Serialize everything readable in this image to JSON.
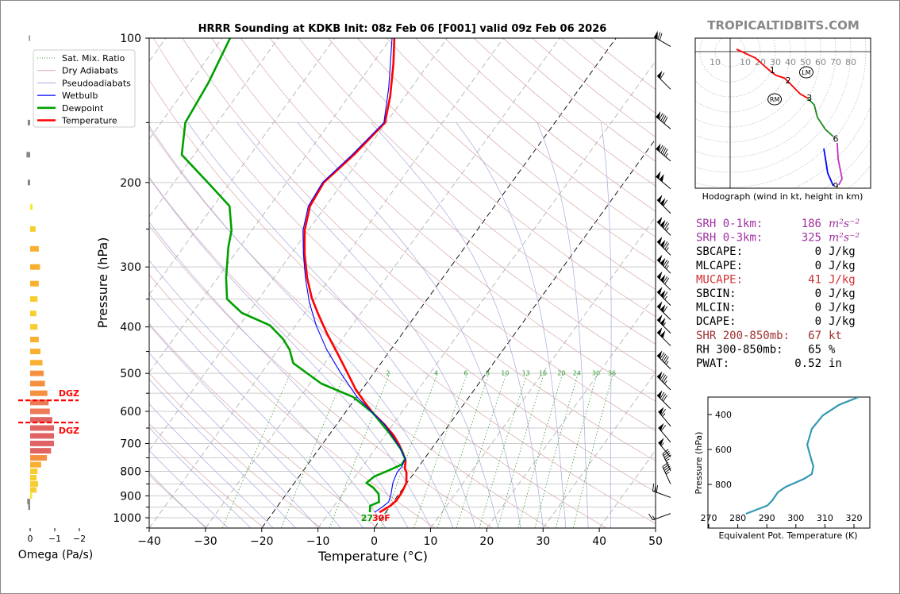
{
  "header": {
    "title": "HRRR Sounding at KDKB Init: 08z Feb 06 [F001] valid 09z Feb 06 2026",
    "watermark": "TROPICALTIDBITS.COM"
  },
  "legend": {
    "items": [
      {
        "label": "Sat. Mix. Ratio",
        "color": "#3a9a3a"
      },
      {
        "label": "Dry Adiabats",
        "color": "#d8a8a8"
      },
      {
        "label": "Pseudoadiabats",
        "color": "#a8a8dd"
      },
      {
        "label": "Wetbulb",
        "color": "#0000ff"
      },
      {
        "label": "Dewpoint",
        "color": "#00a000"
      },
      {
        "label": "Temperature",
        "color": "#ff0000"
      }
    ]
  },
  "surface_labels": {
    "dewpoint": "27",
    "temperature": "30F"
  },
  "chart_data": [
    {
      "type": "line",
      "name": "skew-t",
      "xlabel": "Temperature (°C)",
      "ylabel": "Pressure (hPa)",
      "xlim": [
        -40,
        50
      ],
      "ylim": [
        1050,
        100
      ],
      "xticks": [
        "−40",
        "−30",
        "−20",
        "−10",
        "0",
        "10",
        "20",
        "30",
        "40",
        "50"
      ],
      "xtick_values": [
        -40,
        -30,
        -20,
        -10,
        0,
        10,
        20,
        30,
        40,
        50
      ],
      "yticks": [
        "100",
        "200",
        "300",
        "400",
        "500",
        "600",
        "700",
        "800",
        "900",
        "1000"
      ],
      "ytick_values": [
        100,
        200,
        300,
        400,
        500,
        600,
        700,
        800,
        900,
        1000
      ],
      "mixing_ratio_labels": [
        "2",
        "4",
        "6",
        "8",
        "10",
        "13",
        "16",
        "20",
        "24",
        "30",
        "36"
      ],
      "mixing_ratio_values": [
        0.4,
        1,
        2,
        4,
        6,
        8,
        10,
        13,
        16,
        20,
        24,
        30,
        36
      ],
      "series": [
        {
          "name": "Temperature",
          "color": "#ff0000",
          "p": [
            974,
            944,
            920,
            885,
            846,
            805,
            790,
            760,
            732,
            704,
            673,
            640,
            605,
            571,
            539,
            500,
            454,
            413,
            375,
            348,
            316,
            282,
            252,
            224,
            200,
            175,
            150,
            132,
            113,
            100
          ],
          "t": [
            -1.1,
            0.0,
            0.4,
            0.3,
            -0.1,
            -1.4,
            -2.2,
            -3.1,
            -4.6,
            -6.3,
            -8.5,
            -11.4,
            -15.0,
            -18.2,
            -21.2,
            -24.6,
            -29.0,
            -33.4,
            -37.6,
            -40.7,
            -44.1,
            -47.6,
            -50.6,
            -52.8,
            -53.4,
            -51.6,
            -50.2,
            -52.7,
            -56.3,
            -59.4
          ]
        },
        {
          "name": "Dewpoint",
          "color": "#00a000",
          "p": [
            974,
            944,
            927,
            892,
            865,
            846,
            820,
            796,
            775,
            754,
            718,
            665,
            605,
            560,
            525,
            476,
            446,
            424,
            397,
            374,
            350,
            316,
            272,
            252,
            224,
            200,
            175,
            150,
            124,
            100
          ],
          "t": [
            -2.8,
            -3.6,
            -2.5,
            -3.6,
            -5.4,
            -7.2,
            -6.6,
            -4.8,
            -3.3,
            -3.4,
            -5.5,
            -9.6,
            -15.0,
            -20.6,
            -28.0,
            -35.6,
            -38.0,
            -40.5,
            -44.6,
            -51.2,
            -55.6,
            -58.5,
            -62.1,
            -63.6,
            -67.1,
            -74.0,
            -82.2,
            -85.7,
            -86.7,
            -88.6
          ]
        },
        {
          "name": "Wetbulb",
          "color": "#0000ff",
          "p": [
            974,
            955,
            927,
            892,
            846,
            805,
            784,
            754,
            718,
            678,
            640,
            605,
            560,
            500,
            446,
            397,
            355,
            316,
            282,
            252,
            224,
            200,
            175,
            150,
            127,
            100
          ],
          "t": [
            -2.0,
            -1.4,
            -0.8,
            -1.4,
            -2.5,
            -3.1,
            -3.0,
            -3.4,
            -5.5,
            -8.4,
            -11.4,
            -15.0,
            -19.9,
            -25.8,
            -31.4,
            -36.4,
            -40.6,
            -44.4,
            -47.8,
            -50.9,
            -53.1,
            -53.6,
            -51.9,
            -50.4,
            -54.0,
            -59.8
          ]
        }
      ],
      "wind_barbs": [
        {
          "p": 101,
          "dir": 300,
          "kt": 70
        },
        {
          "p": 124,
          "dir": 315,
          "kt": 60
        },
        {
          "p": 150,
          "dir": 310,
          "kt": 90
        },
        {
          "p": 175,
          "dir": 310,
          "kt": 95
        },
        {
          "p": 200,
          "dir": 310,
          "kt": 100
        },
        {
          "p": 225,
          "dir": 315,
          "kt": 110
        },
        {
          "p": 250,
          "dir": 315,
          "kt": 125
        },
        {
          "p": 275,
          "dir": 315,
          "kt": 125
        },
        {
          "p": 300,
          "dir": 315,
          "kt": 125
        },
        {
          "p": 325,
          "dir": 315,
          "kt": 120
        },
        {
          "p": 350,
          "dir": 315,
          "kt": 115
        },
        {
          "p": 375,
          "dir": 315,
          "kt": 110
        },
        {
          "p": 400,
          "dir": 315,
          "kt": 105
        },
        {
          "p": 425,
          "dir": 315,
          "kt": 100
        },
        {
          "p": 475,
          "dir": 315,
          "kt": 95
        },
        {
          "p": 525,
          "dir": 315,
          "kt": 85
        },
        {
          "p": 575,
          "dir": 315,
          "kt": 80
        },
        {
          "p": 625,
          "dir": 320,
          "kt": 65
        },
        {
          "p": 675,
          "dir": 320,
          "kt": 60
        },
        {
          "p": 725,
          "dir": 320,
          "kt": 55
        },
        {
          "p": 775,
          "dir": 335,
          "kt": 45
        },
        {
          "p": 825,
          "dir": 335,
          "kt": 45
        },
        {
          "p": 880,
          "dir": 290,
          "kt": 30
        },
        {
          "p": 950,
          "dir": 250,
          "kt": 15
        }
      ]
    },
    {
      "type": "bar",
      "name": "omega",
      "xlabel": "Omega (Pa/s)",
      "xticks": [
        "0",
        "−1",
        "−2"
      ],
      "xtick_values": [
        0,
        -1,
        -2
      ],
      "dgz_label": "DGZ",
      "dgz_bounds_hpa": [
        569,
        633
      ],
      "p": [
        100,
        150,
        175,
        200,
        225,
        250,
        275,
        300,
        325,
        350,
        375,
        400,
        425,
        450,
        475,
        500,
        525,
        550,
        575,
        600,
        625,
        650,
        675,
        700,
        725,
        750,
        775,
        800,
        825,
        850,
        875,
        900,
        925,
        950
      ],
      "values": [
        0.05,
        0.1,
        0.15,
        0.1,
        -0.1,
        -0.22,
        -0.35,
        -0.4,
        -0.35,
        -0.3,
        -0.25,
        -0.3,
        -0.35,
        -0.42,
        -0.5,
        -0.55,
        -0.6,
        -0.7,
        -0.75,
        -0.8,
        -0.9,
        -0.97,
        -0.97,
        -0.97,
        -0.85,
        -0.68,
        -0.45,
        -0.3,
        -0.26,
        -0.32,
        -0.26,
        -0.08,
        0.12,
        0.08
      ]
    },
    {
      "type": "line",
      "name": "hodograph",
      "caption": "Hodograph (wind in kt, height in km)",
      "ring_labels": [
        "10",
        "10",
        "20",
        "30",
        "40",
        "50",
        "60",
        "70",
        "80"
      ],
      "ring_values": [
        -10,
        10,
        20,
        30,
        40,
        50,
        60,
        70,
        80
      ],
      "segments": [
        {
          "layer": "0-3km",
          "color": "#ff0000",
          "u": [
            4.2,
            16.8,
            23.2,
            28,
            30.5,
            35.8,
            39,
            46.3,
            51.6
          ],
          "v": [
            1.6,
            -4.2,
            -10,
            -14,
            -15.8,
            -17.4,
            -20.5,
            -27.9,
            -31
          ]
        },
        {
          "layer": "3-6km",
          "color": "#1a8a1a",
          "u": [
            51.6,
            55.8,
            57.9,
            63.2,
            68.4
          ],
          "v": [
            -31,
            -35.3,
            -43.7,
            -51.6,
            -56.3
          ]
        },
        {
          "layer": "6-9km",
          "color": "#c030c0",
          "u": [
            71,
            71.6,
            74.2,
            72
          ],
          "v": [
            -60.5,
            -71,
            -84.2,
            -88.4
          ]
        },
        {
          "layer": "9+km",
          "color": "#0000ff",
          "u": [
            68.4,
            64.7,
            63.2,
            62.1
          ],
          "v": [
            -89,
            -80.5,
            -71,
            -64.2
          ]
        }
      ],
      "height_labels": [
        {
          "label": "1",
          "u": 28,
          "v": -12
        },
        {
          "label": "2",
          "u": 38.5,
          "v": -19
        },
        {
          "label": "3",
          "u": 52.5,
          "v": -30.5
        },
        {
          "label": "6",
          "u": 70,
          "v": -57.5
        },
        {
          "label": "9",
          "u": 70,
          "v": -89
        }
      ],
      "storm_motion": [
        {
          "label": "LM",
          "u": 50.5,
          "v": -13.7
        },
        {
          "label": "RM",
          "u": 29.5,
          "v": -31.6
        }
      ]
    },
    {
      "type": "line",
      "name": "theta-e",
      "xlabel": "Equivalent Pot. Temperature (K)",
      "ylabel": "Pressure (hPa)",
      "xticks": [
        "270",
        "280",
        "290",
        "300",
        "310",
        "320"
      ],
      "xtick_values": [
        270,
        280,
        290,
        300,
        310,
        320
      ],
      "yticks": [
        "400",
        "600",
        "800"
      ],
      "ytick_values": [
        400,
        600,
        800
      ],
      "xlim": [
        270,
        326
      ],
      "ylim": [
        1050,
        300
      ],
      "color": "#3399b3",
      "theta_e": [
        282.8,
        290.2,
        291.9,
        293.8,
        296.5,
        302.8,
        305.5,
        306.0,
        305.2,
        303.9,
        305.5,
        309.3,
        314.8,
        321.6
      ],
      "p": [
        968,
        921,
        891,
        845,
        814,
        768,
        741,
        695,
        650,
        573,
        482,
        405,
        345,
        300
      ]
    }
  ],
  "stats": [
    {
      "label": "SRH 0-1km:",
      "value": "186",
      "unit": "m²s⁻²",
      "color": "#a030a0",
      "italic": true
    },
    {
      "label": "SRH 0-3km:",
      "value": "325",
      "unit": "m²s⁻²",
      "color": "#a030a0",
      "italic": true
    },
    {
      "label": "SBCAPE:",
      "value": "0",
      "unit": "J/kg",
      "color": "#000000"
    },
    {
      "label": "MLCAPE:",
      "value": "0",
      "unit": "J/kg",
      "color": "#000000"
    },
    {
      "label": "MUCAPE:",
      "value": "41",
      "unit": "J/kg",
      "color": "#d03030"
    },
    {
      "label": "SBCIN:",
      "value": "0",
      "unit": "J/kg",
      "color": "#000000"
    },
    {
      "label": "MLCIN:",
      "value": "0",
      "unit": "J/kg",
      "color": "#000000"
    },
    {
      "label": "DCAPE:",
      "value": "0",
      "unit": "J/kg",
      "color": "#000000"
    },
    {
      "label": "SHR 200-850mb:",
      "value": "67",
      "unit": "kt",
      "color": "#a03030"
    },
    {
      "label": "RH 300-850mb:",
      "value": "65",
      "unit": "%",
      "color": "#000000"
    },
    {
      "label": "PWAT:",
      "value": "0.52",
      "unit": "in",
      "color": "#000000"
    }
  ]
}
